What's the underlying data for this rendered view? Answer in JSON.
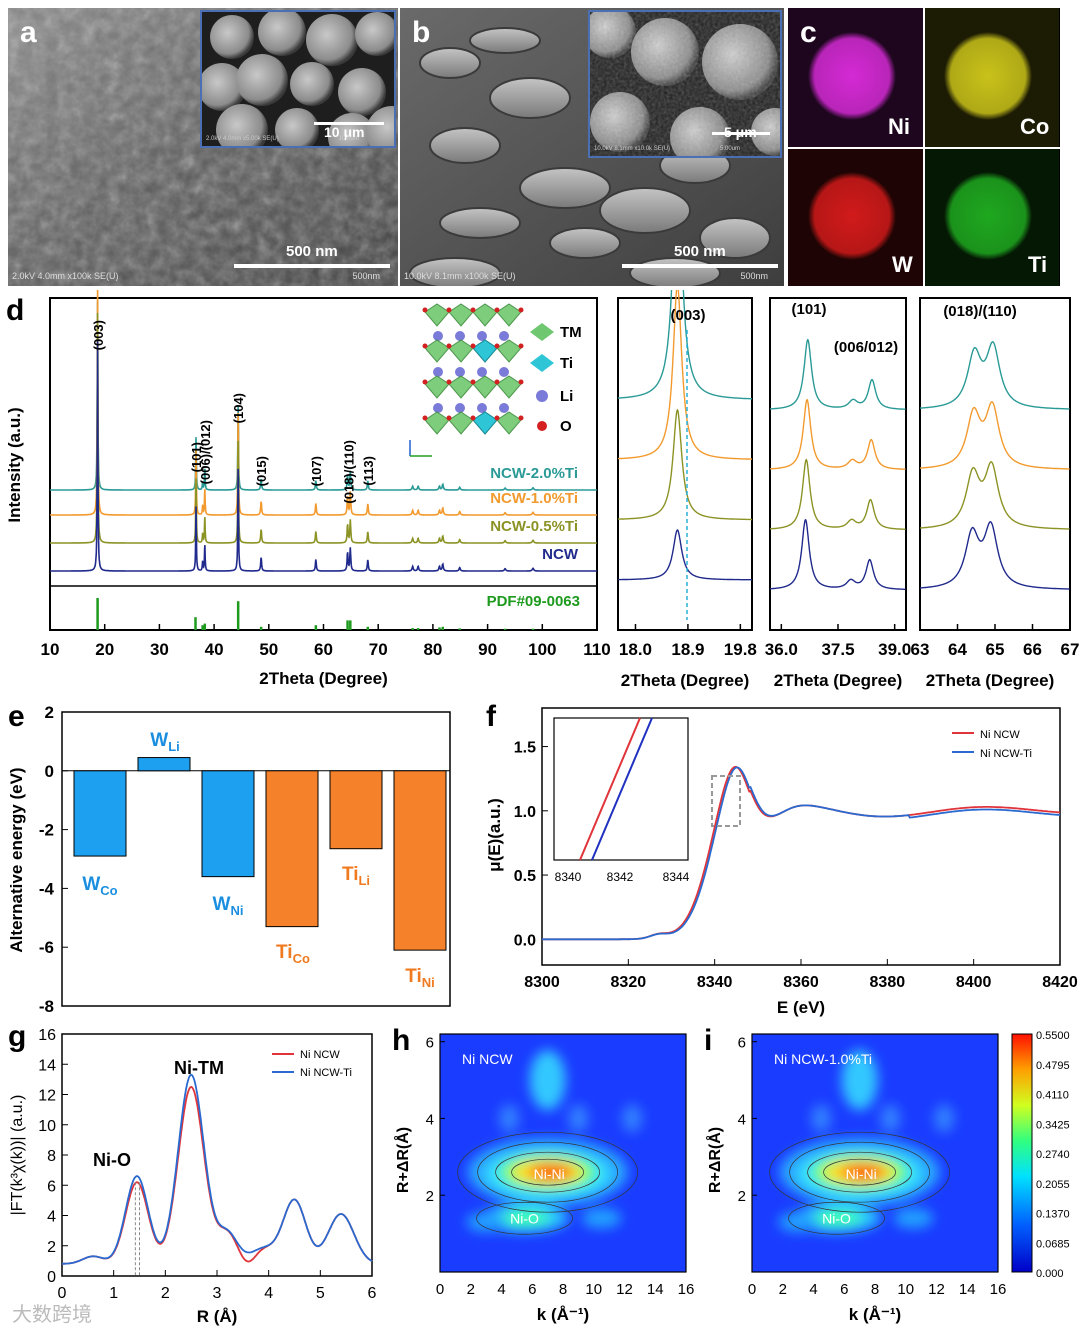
{
  "panel_labels": {
    "a": "a",
    "b": "b",
    "c": "c",
    "d": "d",
    "e": "e",
    "f": "f",
    "g": "g",
    "h": "h",
    "i": "i"
  },
  "panel_a": {
    "scale": "500 nm",
    "inset_scale": "10 μm",
    "meta": "2.0kV 4.0mm x100k SE(U)",
    "meta_scale": "500nm",
    "inset_meta": "2.0kV 4.0mm x5.00k SE(U)",
    "inset_meta_scale": "10.0um"
  },
  "panel_b": {
    "scale": "500 nm",
    "inset_scale": "5 μm",
    "meta": "10.0kV 8.1mm x100k SE(U)",
    "meta_scale": "500nm",
    "inset_meta": "10.0kV 8.1mm x10.0k SE(U)",
    "inset_meta_scale": "5.00um"
  },
  "panel_c": {
    "maps": [
      {
        "element": "Ni",
        "color": "#d42ad4"
      },
      {
        "element": "Co",
        "color": "#c9c21a"
      },
      {
        "element": "W",
        "color": "#d11a1a"
      },
      {
        "element": "Ti",
        "color": "#1fa81f"
      }
    ]
  },
  "panel_d": {
    "ylabel": "Intensity (a.u.)",
    "xlabel": "2Theta (Degree)",
    "xticks": [
      "10",
      "20",
      "30",
      "40",
      "50",
      "60",
      "70",
      "80",
      "90",
      "100",
      "110"
    ],
    "peak_labels": [
      {
        "text": "(003)",
        "x": 18.8
      },
      {
        "text": "(101)",
        "x": 36.7
      },
      {
        "text": "(006)/(012)",
        "x": 38.3
      },
      {
        "text": "(104)",
        "x": 44.4
      },
      {
        "text": "(015)",
        "x": 48.6
      },
      {
        "text": "(107)",
        "x": 58.6
      },
      {
        "text": "(018)/(110)",
        "x": 64.6
      },
      {
        "text": "(113)",
        "x": 68.1
      }
    ],
    "series": [
      {
        "name": "NCW-2.0%Ti",
        "color": "#2a9a96"
      },
      {
        "name": "NCW-1.0%Ti",
        "color": "#f29a2e"
      },
      {
        "name": "NCW-0.5%Ti",
        "color": "#8c9325"
      },
      {
        "name": "NCW",
        "color": "#202a8c"
      }
    ],
    "reference": {
      "label": "PDF#09-0063",
      "color": "#1e9a1e",
      "lines": [
        [
          18.7,
          1.0
        ],
        [
          36.6,
          0.4
        ],
        [
          37.9,
          0.15
        ],
        [
          38.3,
          0.2
        ],
        [
          44.4,
          0.9
        ],
        [
          48.6,
          0.1
        ],
        [
          58.6,
          0.15
        ],
        [
          64.4,
          0.3
        ],
        [
          64.9,
          0.3
        ],
        [
          68.1,
          0.1
        ],
        [
          76.3,
          0.06
        ],
        [
          77.3,
          0.06
        ],
        [
          81.2,
          0.08
        ],
        [
          81.8,
          0.1
        ],
        [
          84.9,
          0.05
        ],
        [
          93.2,
          0.04
        ],
        [
          98.3,
          0.04
        ]
      ]
    },
    "legend": [
      {
        "label": "TM",
        "color": "#6fc86f"
      },
      {
        "label": "Ti",
        "color": "#2ec6d6"
      },
      {
        "label": "Li",
        "color": "#7a7ad8"
      },
      {
        "label": "O",
        "color": "#d42020"
      }
    ],
    "zoom_panels": [
      {
        "title": "(003)",
        "xticks": [
          "18.0",
          "18.9",
          "19.8"
        ],
        "xlabel": "2Theta (Degree)"
      },
      {
        "title1": "(101)",
        "title2": "(006/012)",
        "xticks": [
          "36.0",
          "37.5",
          "39.0"
        ],
        "xlabel": "2Theta (Degree)"
      },
      {
        "title": "(018)/(110)",
        "xticks": [
          "63",
          "64",
          "65",
          "66",
          "67"
        ],
        "xlabel": "2Theta (Degree)"
      }
    ]
  },
  "panel_e": {
    "ylabel": "Alternative energy (eV)",
    "chart_data": {
      "type": "bar",
      "ylim": [
        -8,
        2
      ],
      "yticks": [
        "2",
        "0",
        "-2",
        "-4",
        "-6",
        "-8"
      ],
      "bars": [
        {
          "main": "W",
          "sub": "Co",
          "value": -2.9,
          "color": "#1ea0f0",
          "text_color": "#1a8fe0"
        },
        {
          "main": "W",
          "sub": "Li",
          "value": 0.45,
          "color": "#1ea0f0",
          "text_color": "#1a8fe0"
        },
        {
          "main": "W",
          "sub": "Ni",
          "value": -3.6,
          "color": "#1ea0f0",
          "text_color": "#1a8fe0"
        },
        {
          "main": "Ti",
          "sub": "Co",
          "value": -5.3,
          "color": "#f5822a",
          "text_color": "#f07a20"
        },
        {
          "main": "Ti",
          "sub": "Li",
          "value": -2.65,
          "color": "#f5822a",
          "text_color": "#f07a20"
        },
        {
          "main": "Ti",
          "sub": "Ni",
          "value": -6.1,
          "color": "#f5822a",
          "text_color": "#f07a20"
        }
      ]
    }
  },
  "panel_f": {
    "ylabel": "μ(E)(a.u.)",
    "xlabel": "E (eV)",
    "yticks": [
      "0.0",
      "0.5",
      "1.0",
      "1.5"
    ],
    "xticks": [
      "8300",
      "8320",
      "8340",
      "8360",
      "8380",
      "8400",
      "8420"
    ],
    "inset_xticks": [
      "8340",
      "8342",
      "8344"
    ],
    "legend": [
      {
        "label": "Ni NCW",
        "color": "#e0343a"
      },
      {
        "label": "Ni NCW-Ti",
        "color": "#2a6ad0"
      }
    ]
  },
  "panel_g": {
    "ylabel": "|FT(k³χ(k))| (a.u.)",
    "xlabel": "R (Å)",
    "yticks": [
      "0",
      "2",
      "4",
      "6",
      "8",
      "10",
      "12",
      "14",
      "16"
    ],
    "xticks": [
      "0",
      "1",
      "2",
      "3",
      "4",
      "5",
      "6"
    ],
    "annotations": [
      "Ni-TM",
      "Ni-O"
    ],
    "legend": [
      {
        "label": "Ni NCW",
        "color": "#e0343a"
      },
      {
        "label": "Ni NCW-Ti",
        "color": "#2a6ad0"
      }
    ]
  },
  "panel_h": {
    "title": "Ni NCW",
    "ylabel": "R+ΔR(Å)",
    "xlabel": "k (Å⁻¹)",
    "yticks": [
      "6",
      "4",
      "2"
    ],
    "xticks": [
      "0",
      "2",
      "4",
      "6",
      "8",
      "10",
      "12",
      "14",
      "16"
    ],
    "labels": [
      "Ni-Ni",
      "Ni-O"
    ]
  },
  "panel_i": {
    "title": "Ni NCW-1.0%Ti",
    "ylabel": "R+ΔR(Å)",
    "xlabel": "k (Å⁻¹)",
    "yticks": [
      "6",
      "4",
      "2"
    ],
    "xticks": [
      "0",
      "2",
      "4",
      "6",
      "8",
      "10",
      "12",
      "14",
      "16"
    ],
    "labels": [
      "Ni-Ni",
      "Ni-O"
    ],
    "colorbar": [
      "0.5500",
      "0.4795",
      "0.4110",
      "0.3425",
      "0.2740",
      "0.2055",
      "0.1370",
      "0.0685",
      "0.000"
    ]
  },
  "watermark": "大数跨境"
}
